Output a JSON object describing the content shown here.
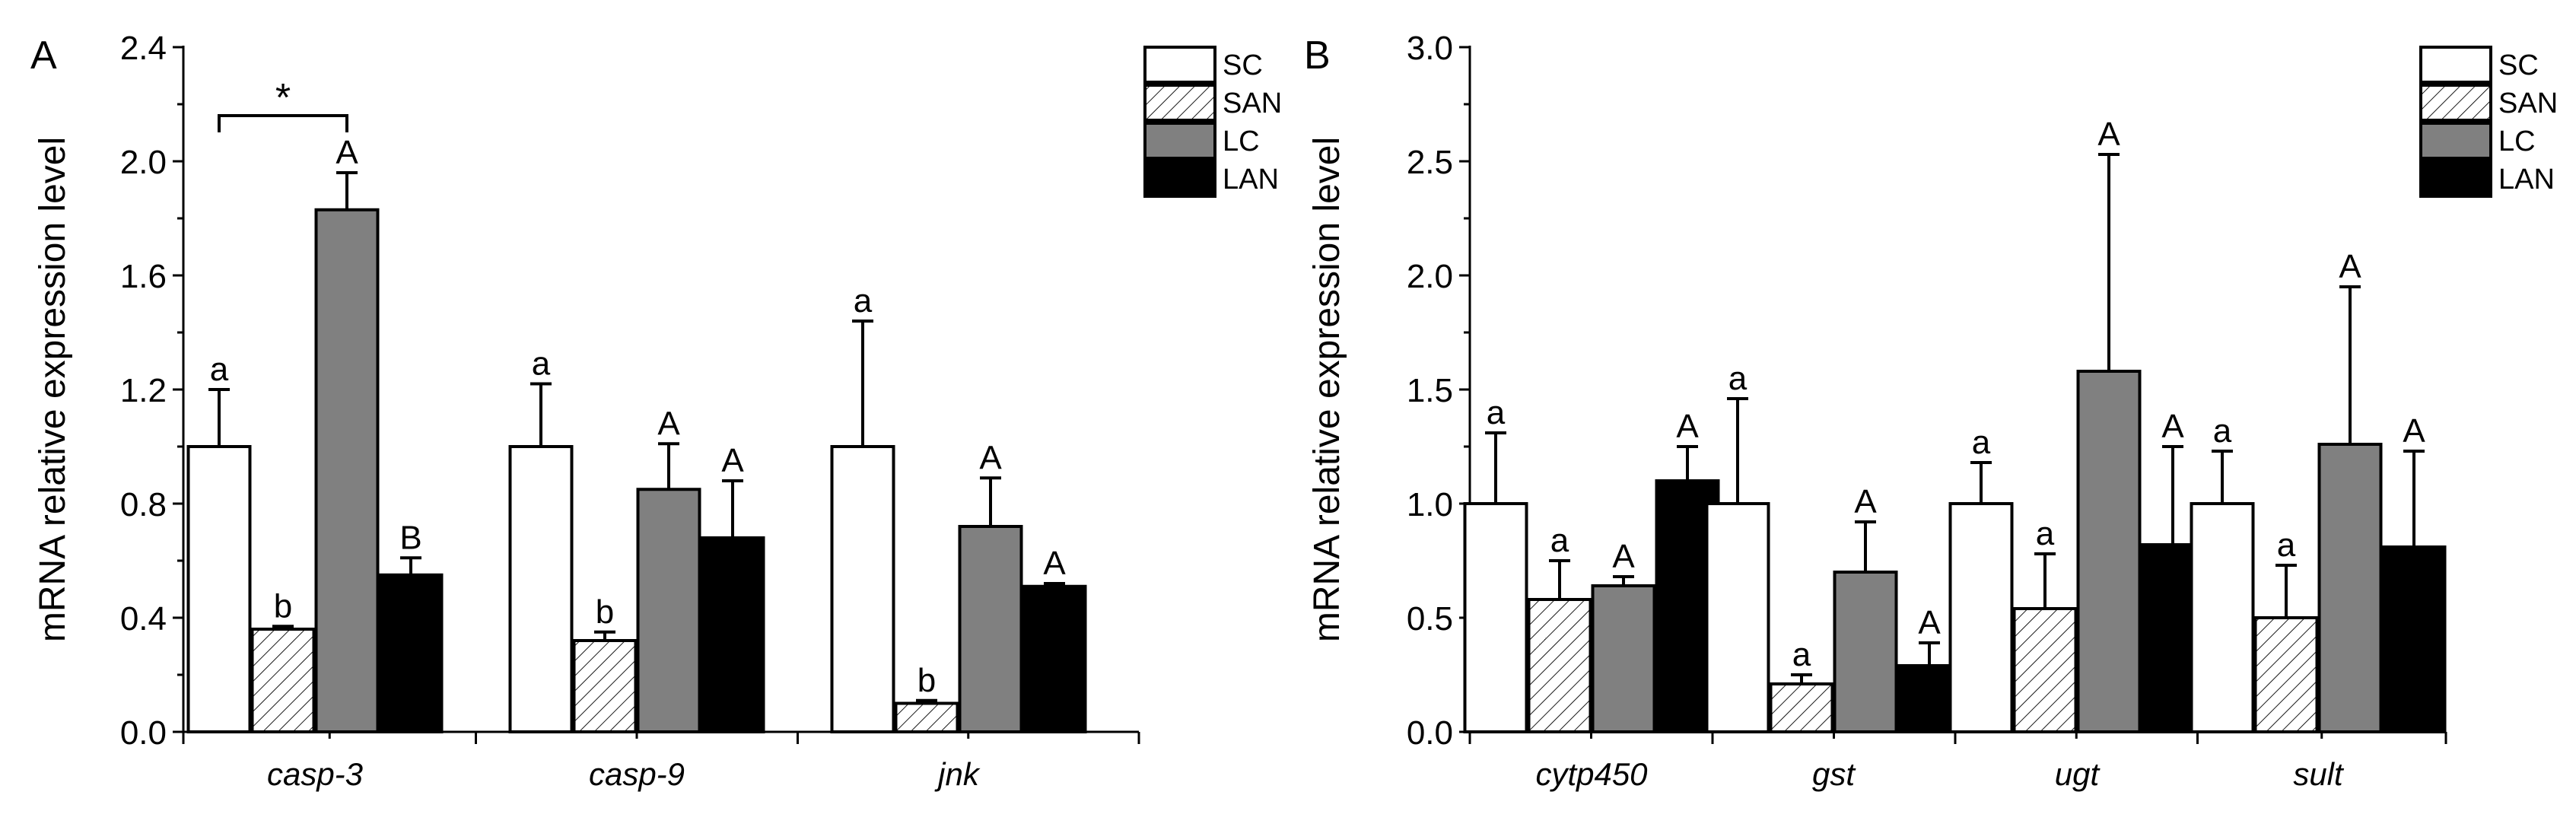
{
  "colors": {
    "SC": "#ffffff",
    "SAN": "hatch",
    "LC": "#808080",
    "LAN": "#000000",
    "stroke": "#000000"
  },
  "chart_data": [
    {
      "panel_label": "A",
      "type": "bar",
      "ylabel": "mRNA relative expression level",
      "xlabel": "",
      "ylim": [
        0,
        2.4
      ],
      "yticks": [
        "0.0",
        "0.4",
        "0.8",
        "1.2",
        "1.6",
        "2.0",
        "2.4"
      ],
      "legend_position": "top-right",
      "categories": [
        "casp-3",
        "casp-9",
        "jnk"
      ],
      "series": [
        {
          "name": "SC",
          "values": [
            1.0,
            1.0,
            1.0
          ],
          "errors": [
            0.2,
            0.22,
            0.44
          ],
          "labels": [
            "a",
            "a",
            "a"
          ]
        },
        {
          "name": "SAN",
          "values": [
            0.36,
            0.32,
            0.1
          ],
          "errors": [
            0.01,
            0.03,
            0.01
          ],
          "labels": [
            "b",
            "b",
            "b"
          ]
        },
        {
          "name": "LC",
          "values": [
            1.83,
            0.85,
            0.72
          ],
          "errors": [
            0.13,
            0.16,
            0.17
          ],
          "labels": [
            "A",
            "A",
            "A"
          ]
        },
        {
          "name": "LAN",
          "values": [
            0.55,
            0.68,
            0.51
          ],
          "errors": [
            0.06,
            0.2,
            0.01
          ],
          "labels": [
            "B",
            "A",
            "A"
          ]
        }
      ],
      "annotations": [
        {
          "text": "*",
          "category": "casp-3",
          "from_series": "SC",
          "to_series": "LC",
          "level": 2.16
        }
      ]
    },
    {
      "panel_label": "B",
      "type": "bar",
      "ylabel": "mRNA relative expression level",
      "xlabel": "",
      "ylim": [
        0,
        3.0
      ],
      "yticks": [
        "0.0",
        "0.5",
        "1.0",
        "1.5",
        "2.0",
        "2.5",
        "3.0"
      ],
      "legend_position": "top-right",
      "categories": [
        "cytp450",
        "gst",
        "ugt",
        "sult"
      ],
      "series": [
        {
          "name": "SC",
          "values": [
            1.0,
            1.0,
            1.0,
            1.0
          ],
          "errors": [
            0.31,
            0.46,
            0.18,
            0.23
          ],
          "labels": [
            "a",
            "a",
            "a",
            "a"
          ]
        },
        {
          "name": "SAN",
          "values": [
            0.58,
            0.21,
            0.54,
            0.5
          ],
          "errors": [
            0.17,
            0.04,
            0.24,
            0.23
          ],
          "labels": [
            "a",
            "a",
            "a",
            "a"
          ]
        },
        {
          "name": "LC",
          "values": [
            0.64,
            0.7,
            1.58,
            1.26
          ],
          "errors": [
            0.04,
            0.22,
            0.95,
            0.69
          ],
          "labels": [
            "A",
            "A",
            "A",
            "A"
          ]
        },
        {
          "name": "LAN",
          "values": [
            1.1,
            0.29,
            0.82,
            0.81
          ],
          "errors": [
            0.15,
            0.1,
            0.43,
            0.42
          ],
          "labels": [
            "A",
            "A",
            "A",
            "A"
          ]
        }
      ],
      "annotations": []
    }
  ]
}
